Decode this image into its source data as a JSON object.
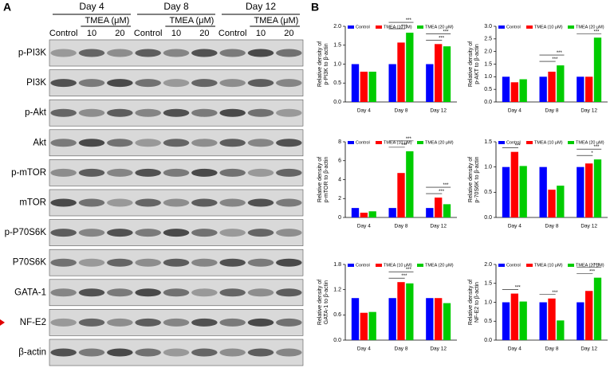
{
  "blot": {
    "panel_label": "A",
    "days": [
      "Day 4",
      "Day 8",
      "Day 12"
    ],
    "treatment": "TMEA (μM)",
    "lanes": [
      "Control",
      "10",
      "20"
    ],
    "proteins": [
      "p-PI3K",
      "PI3K",
      "p-Akt",
      "Akt",
      "p-mTOR",
      "mTOR",
      "p-P70S6K",
      "P70S6K",
      "GATA-1",
      "NF-E2",
      "β-actin"
    ]
  },
  "panel_b_label": "B",
  "chart_data": [
    {
      "type": "bar",
      "ylabel": [
        "Relative density of",
        "p-PI3K to β-actin"
      ],
      "categories": [
        "Day 4",
        "Day 8",
        "Day 12"
      ],
      "series": [
        {
          "name": "Control",
          "color": "#0000ff",
          "values": [
            1.0,
            1.0,
            1.0
          ]
        },
        {
          "name": "TMEA (10 μM)",
          "color": "#ff0000",
          "values": [
            0.8,
            1.57,
            1.53
          ]
        },
        {
          "name": "TMEA (20 μM)",
          "color": "#00cc00",
          "values": [
            0.8,
            1.83,
            1.47
          ]
        }
      ],
      "ylim": [
        0,
        2
      ],
      "yticks": [
        {
          "value": 0,
          "label": "0.0"
        },
        {
          "value": 0.5,
          "label": "0.5"
        },
        {
          "value": 1,
          "label": "1.0"
        },
        {
          "value": 1.5,
          "label": "1.5"
        },
        {
          "value": 2,
          "label": "2.0"
        }
      ],
      "significance": [
        [
          null,
          null
        ],
        [
          "***",
          "***"
        ],
        [
          "***",
          "***"
        ]
      ]
    },
    {
      "type": "bar",
      "ylabel": [
        "Relative density of",
        "p-AKT to β-actin"
      ],
      "categories": [
        "Day 4",
        "Day 8",
        "Day 12"
      ],
      "series": [
        {
          "name": "Control",
          "color": "#0000ff",
          "values": [
            1.0,
            1.0,
            1.0
          ]
        },
        {
          "name": "TMEA (10 μM)",
          "color": "#ff0000",
          "values": [
            0.78,
            1.2,
            1.0
          ]
        },
        {
          "name": "TMEA (20 μM)",
          "color": "#00cc00",
          "values": [
            0.9,
            1.45,
            2.55
          ]
        }
      ],
      "ylim": [
        0,
        3
      ],
      "yticks": [
        {
          "value": 0,
          "label": "0.0"
        },
        {
          "value": 0.5,
          "label": "0.5"
        },
        {
          "value": 1,
          "label": "1.0"
        },
        {
          "value": 1.5,
          "label": "1.5"
        },
        {
          "value": 2,
          "label": "2.0"
        },
        {
          "value": 2.5,
          "label": "2.5"
        },
        {
          "value": 3,
          "label": "3.0"
        }
      ],
      "significance": [
        [
          null,
          null
        ],
        [
          "***",
          "***"
        ],
        [
          null,
          "***"
        ]
      ]
    },
    {
      "type": "bar",
      "ylabel": [
        "Relative density of",
        "p-mTOR to β-actin"
      ],
      "categories": [
        "Day 4",
        "Day 8",
        "Day 12"
      ],
      "series": [
        {
          "name": "Control",
          "color": "#0000ff",
          "values": [
            1.0,
            1.0,
            1.0
          ]
        },
        {
          "name": "TMEA (10 μM)",
          "color": "#ff0000",
          "values": [
            0.5,
            4.7,
            2.1
          ]
        },
        {
          "name": "TMEA (20 μM)",
          "color": "#00cc00",
          "values": [
            0.65,
            7.0,
            1.4
          ]
        }
      ],
      "ylim": [
        0,
        8
      ],
      "yticks": [
        0,
        2,
        4,
        6,
        8
      ],
      "significance": [
        [
          null,
          null
        ],
        [
          "***",
          "***"
        ],
        [
          "***",
          "***"
        ]
      ]
    },
    {
      "type": "bar",
      "ylabel": [
        "Relative density of",
        "p-70S6K to β-actin"
      ],
      "categories": [
        "Day 4",
        "Day 8",
        "Day 12"
      ],
      "series": [
        {
          "name": "Control",
          "color": "#0000ff",
          "values": [
            1.0,
            1.0,
            1.0
          ]
        },
        {
          "name": "TMEA (10 μM)",
          "color": "#ff0000",
          "values": [
            1.3,
            0.55,
            1.07
          ]
        },
        {
          "name": "TMEA (20 μM)",
          "color": "#00cc00",
          "values": [
            1.02,
            0.63,
            1.15
          ]
        }
      ],
      "ylim": [
        0,
        1.5
      ],
      "yticks": [
        {
          "value": 0,
          "label": "0.0"
        },
        {
          "value": 0.5,
          "label": "0.5"
        },
        {
          "value": 1,
          "label": "1.0"
        },
        {
          "value": 1.5,
          "label": "1.5"
        }
      ],
      "significance": [
        [
          "***",
          null
        ],
        [
          null,
          null
        ],
        [
          "*",
          "***"
        ]
      ]
    },
    {
      "type": "bar",
      "ylabel": [
        "Relative density of",
        "GATA-1 to β-actin"
      ],
      "categories": [
        "Day 4",
        "Day 8",
        "Day 12"
      ],
      "series": [
        {
          "name": "Control",
          "color": "#0000ff",
          "values": [
            1.0,
            1.0,
            1.0
          ]
        },
        {
          "name": "TMEA (10 μM)",
          "color": "#ff0000",
          "values": [
            0.65,
            1.38,
            1.0
          ]
        },
        {
          "name": "TMEA (20 μM)",
          "color": "#00cc00",
          "values": [
            0.67,
            1.35,
            0.88
          ]
        }
      ],
      "ylim": [
        0,
        1.8
      ],
      "yticks": [
        {
          "value": 0,
          "label": "0.0"
        },
        0.6,
        1.2,
        1.8
      ],
      "significance": [
        [
          null,
          null
        ],
        [
          "***",
          "***"
        ],
        [
          null,
          null
        ]
      ]
    },
    {
      "type": "bar",
      "ylabel": [
        "Relative density of",
        "NF-E2 to β-actin"
      ],
      "categories": [
        "Day 4",
        "Day 8",
        "Day 12"
      ],
      "series": [
        {
          "name": "Control",
          "color": "#0000ff",
          "values": [
            1.0,
            1.0,
            1.0
          ]
        },
        {
          "name": "TMEA (10 μM)",
          "color": "#ff0000",
          "values": [
            1.23,
            1.1,
            1.3
          ]
        },
        {
          "name": "TMEA (20 μM)",
          "color": "#00cc00",
          "values": [
            1.02,
            0.52,
            1.65
          ]
        }
      ],
      "ylim": [
        0,
        2
      ],
      "yticks": [
        {
          "value": 0,
          "label": "0.0"
        },
        {
          "value": 0.5,
          "label": "0.5"
        },
        {
          "value": 1,
          "label": "1.0"
        },
        {
          "value": 1.5,
          "label": "1.5"
        },
        {
          "value": 2,
          "label": "2.0"
        }
      ],
      "significance": [
        [
          "***",
          null
        ],
        [
          "***",
          null
        ],
        [
          "***",
          "***"
        ]
      ]
    }
  ]
}
